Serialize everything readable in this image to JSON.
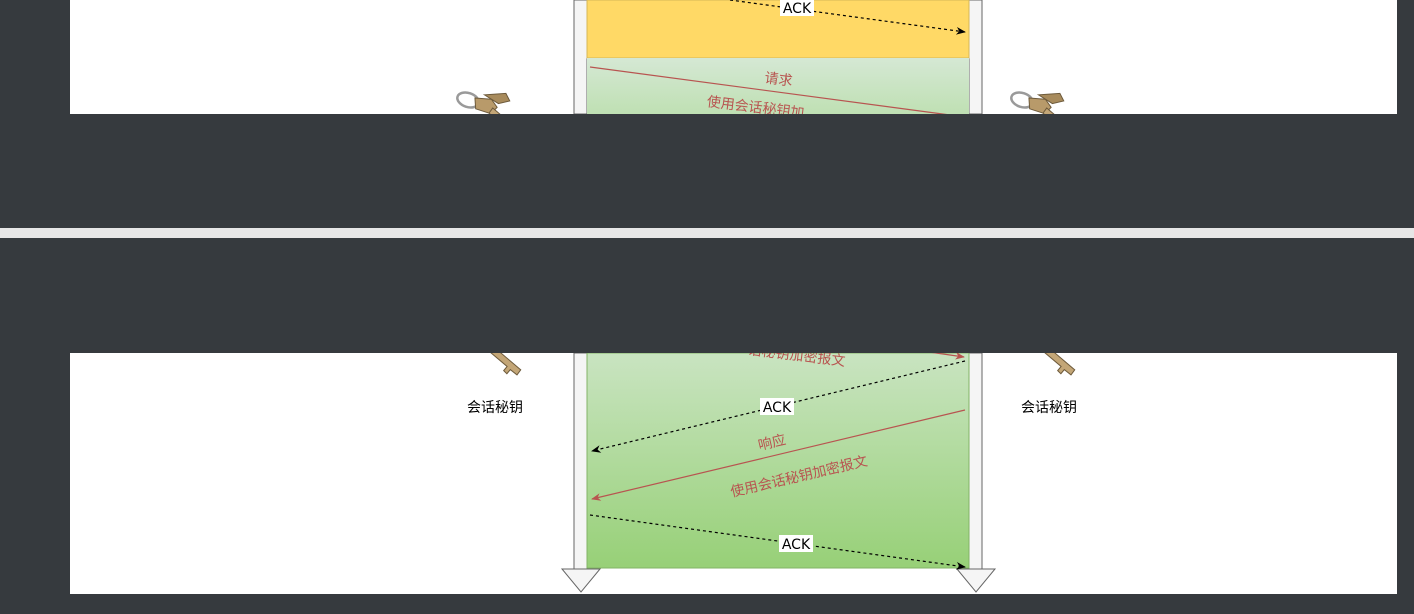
{
  "diagram": {
    "top_fragment": {
      "ack_label": "ACK",
      "request_label": "请求",
      "request_sub_label": "使用会话秘钥加"
    },
    "bottom_fragment": {
      "request_sub_label_tail": "话秘钥加密报文",
      "ack_label_1": "ACK",
      "response_label": "响应",
      "response_sub_label": "使用会话秘钥加密报文",
      "ack_label_2": "ACK",
      "left_key_caption": "会话秘钥",
      "right_key_caption": "会话秘钥"
    }
  },
  "colors": {
    "outer_background": "#363a3e",
    "canvas_background": "#ffffff",
    "divider": "#e6e6e6",
    "yellow_phase": "#ffd966",
    "green_phase_top": "#d5e8d4",
    "green_phase_bottom": "#97d077",
    "request_response_arrow": "#b85450",
    "ack_arrow": "#000000",
    "timeline": "#f5f5f5",
    "timeline_stroke": "#666666"
  },
  "icons": {
    "left_key": "key-icon",
    "right_key": "key-icon"
  }
}
